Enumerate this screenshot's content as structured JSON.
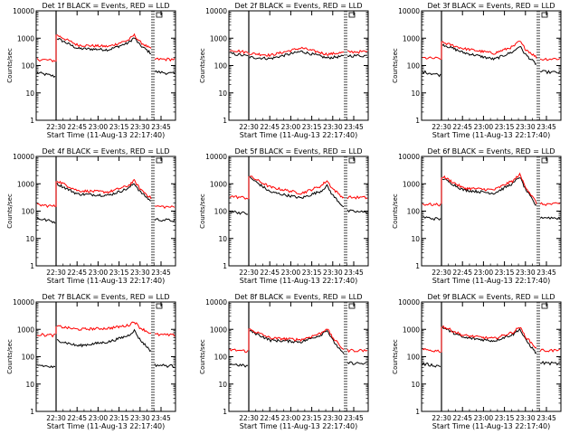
{
  "chart_data": [
    {
      "type": "line",
      "title": "Det 1f BLACK = Events, RED = LLD",
      "xlabel": "Start Time (11-Aug-13 22:17:40)",
      "ylabel": "Counts/sec",
      "y_scale": "log",
      "ylim": [
        1,
        10000
      ],
      "y_ticks": [
        "1",
        "10",
        "100",
        "1000",
        "10000"
      ],
      "x_ticks": [
        "22:30",
        "22:45",
        "23:00",
        "23:15",
        "23:30",
        "23:45"
      ],
      "shape": "peak_late",
      "series": [
        {
          "color": "#000000",
          "pre": [
            55,
            40
          ],
          "values": [
            1000,
            420,
            380,
            800,
            280
          ],
          "post": [
            60,
            50
          ]
        },
        {
          "color": "#ff0000",
          "pre": [
            170,
            150
          ],
          "values": [
            1300,
            560,
            500,
            1000,
            400
          ],
          "post": [
            170,
            170
          ]
        }
      ]
    },
    {
      "type": "line",
      "title": "Det 2f BLACK = Events, RED = LLD",
      "xlabel": "Start Time (11-Aug-13 22:17:40)",
      "ylabel": "Counts/sec",
      "y_scale": "log",
      "ylim": [
        1,
        10000
      ],
      "y_ticks": [
        "1",
        "10",
        "100",
        "1000",
        "10000"
      ],
      "x_ticks": [
        "22:30",
        "22:45",
        "23:00",
        "23:15",
        "23:30",
        "23:45"
      ],
      "shape": "hump_mid",
      "series": [
        {
          "color": "#000000",
          "pre": [
            280,
            220
          ],
          "values": [
            200,
            180,
            330,
            190,
            220
          ],
          "post": [
            230,
            230
          ]
        },
        {
          "color": "#ff0000",
          "pre": [
            380,
            300
          ],
          "values": [
            280,
            240,
            440,
            260,
            300
          ],
          "post": [
            320,
            320
          ]
        }
      ]
    },
    {
      "type": "line",
      "title": "Det 3f BLACK = Events, RED = LLD",
      "xlabel": "Start Time (11-Aug-13 22:17:40)",
      "ylabel": "Counts/sec",
      "y_scale": "log",
      "ylim": [
        1,
        10000
      ],
      "y_ticks": [
        "1",
        "10",
        "100",
        "1000",
        "10000"
      ],
      "x_ticks": [
        "22:30",
        "22:45",
        "23:00",
        "23:15",
        "23:30",
        "23:45"
      ],
      "shape": "peak_late",
      "series": [
        {
          "color": "#000000",
          "pre": [
            60,
            45
          ],
          "values": [
            600,
            300,
            170,
            400,
            110
          ],
          "post": [
            60,
            55
          ]
        },
        {
          "color": "#ff0000",
          "pre": [
            190,
            180
          ],
          "values": [
            700,
            420,
            280,
            600,
            200
          ],
          "post": [
            170,
            180
          ]
        }
      ]
    },
    {
      "type": "line",
      "title": "Det 4f BLACK = Events, RED = LLD",
      "xlabel": "Start Time (11-Aug-13 22:17:40)",
      "ylabel": "Counts/sec",
      "y_scale": "log",
      "ylim": [
        1,
        10000
      ],
      "y_ticks": [
        "1",
        "10",
        "100",
        "1000",
        "10000"
      ],
      "x_ticks": [
        "22:30",
        "22:45",
        "23:00",
        "23:15",
        "23:30",
        "23:45"
      ],
      "shape": "peak_late",
      "series": [
        {
          "color": "#000000",
          "pre": [
            55,
            40
          ],
          "values": [
            1000,
            420,
            380,
            800,
            230
          ],
          "post": [
            50,
            45
          ]
        },
        {
          "color": "#ff0000",
          "pre": [
            170,
            150
          ],
          "values": [
            1300,
            560,
            500,
            1000,
            300
          ],
          "post": [
            150,
            140
          ]
        }
      ]
    },
    {
      "type": "line",
      "title": "Det 5f BLACK = Events, RED = LLD",
      "xlabel": "Start Time (11-Aug-13 22:17:40)",
      "ylabel": "Counts/sec",
      "y_scale": "log",
      "ylim": [
        1,
        10000
      ],
      "y_ticks": [
        "1",
        "10",
        "100",
        "1000",
        "10000"
      ],
      "x_ticks": [
        "22:30",
        "22:45",
        "23:00",
        "23:15",
        "23:30",
        "23:45"
      ],
      "shape": "peak_late",
      "series": [
        {
          "color": "#000000",
          "pre": [
            100,
            80
          ],
          "values": [
            1700,
            500,
            300,
            650,
            140
          ],
          "post": [
            100,
            90
          ]
        },
        {
          "color": "#ff0000",
          "pre": [
            350,
            300
          ],
          "values": [
            1900,
            750,
            450,
            1000,
            300
          ],
          "post": [
            320,
            310
          ]
        }
      ]
    },
    {
      "type": "line",
      "title": "Det 6f BLACK = Events, RED = LLD",
      "xlabel": "Start Time (11-Aug-13 22:17:40)",
      "ylabel": "Counts/sec",
      "y_scale": "log",
      "ylim": [
        1,
        10000
      ],
      "y_ticks": [
        "1",
        "10",
        "100",
        "1000",
        "10000"
      ],
      "x_ticks": [
        "22:30",
        "22:45",
        "23:00",
        "23:15",
        "23:30",
        "23:45"
      ],
      "shape": "peak_late",
      "series": [
        {
          "color": "#000000",
          "pre": [
            60,
            50
          ],
          "values": [
            1600,
            600,
            450,
            1400,
            150
          ],
          "post": [
            60,
            55
          ]
        },
        {
          "color": "#ff0000",
          "pre": [
            180,
            170
          ],
          "values": [
            1900,
            700,
            600,
            1700,
            200
          ],
          "post": [
            180,
            180
          ]
        }
      ]
    },
    {
      "type": "line",
      "title": "Det 7f BLACK = Events, RED = LLD",
      "xlabel": "Start Time (11-Aug-13 22:17:40)",
      "ylabel": "Counts/sec",
      "y_scale": "log",
      "ylim": [
        1,
        10000
      ],
      "y_ticks": [
        "1",
        "10",
        "100",
        "1000",
        "10000"
      ],
      "x_ticks": [
        "22:30",
        "22:45",
        "23:00",
        "23:15",
        "23:30",
        "23:45"
      ],
      "shape": "peak_late",
      "series": [
        {
          "color": "#000000",
          "pre": [
            50,
            40
          ],
          "values": [
            400,
            250,
            350,
            700,
            160
          ],
          "post": [
            50,
            45
          ]
        },
        {
          "color": "#ff0000",
          "pre": [
            650,
            600
          ],
          "values": [
            1300,
            1000,
            1100,
            1500,
            700
          ],
          "post": [
            650,
            600
          ]
        }
      ]
    },
    {
      "type": "line",
      "title": "Det 8f BLACK = Events, RED = LLD",
      "xlabel": "Start Time (11-Aug-13 22:17:40)",
      "ylabel": "Counts/sec",
      "y_scale": "log",
      "ylim": [
        1,
        10000
      ],
      "y_ticks": [
        "1",
        "10",
        "100",
        "1000",
        "10000"
      ],
      "x_ticks": [
        "22:30",
        "22:45",
        "23:00",
        "23:15",
        "23:30",
        "23:45"
      ],
      "shape": "peak_late",
      "series": [
        {
          "color": "#000000",
          "pre": [
            55,
            45
          ],
          "values": [
            900,
            400,
            350,
            750,
            120
          ],
          "post": [
            60,
            55
          ]
        },
        {
          "color": "#ff0000",
          "pre": [
            180,
            160
          ],
          "values": [
            1000,
            480,
            420,
            850,
            180
          ],
          "post": [
            170,
            170
          ]
        }
      ]
    },
    {
      "type": "line",
      "title": "Det 9f BLACK = Events, RED = LLD",
      "xlabel": "Start Time (11-Aug-13 22:17:40)",
      "ylabel": "Counts/sec",
      "y_scale": "log",
      "ylim": [
        1,
        10000
      ],
      "y_ticks": [
        "1",
        "10",
        "100",
        "1000",
        "10000"
      ],
      "x_ticks": [
        "22:30",
        "22:45",
        "23:00",
        "23:15",
        "23:30",
        "23:45"
      ],
      "shape": "peak_late",
      "series": [
        {
          "color": "#000000",
          "pre": [
            55,
            45
          ],
          "values": [
            1200,
            500,
            380,
            800,
            130
          ],
          "post": [
            60,
            55
          ]
        },
        {
          "color": "#ff0000",
          "pre": [
            180,
            160
          ],
          "values": [
            1300,
            600,
            460,
            950,
            200
          ],
          "post": [
            170,
            170
          ]
        }
      ]
    }
  ]
}
